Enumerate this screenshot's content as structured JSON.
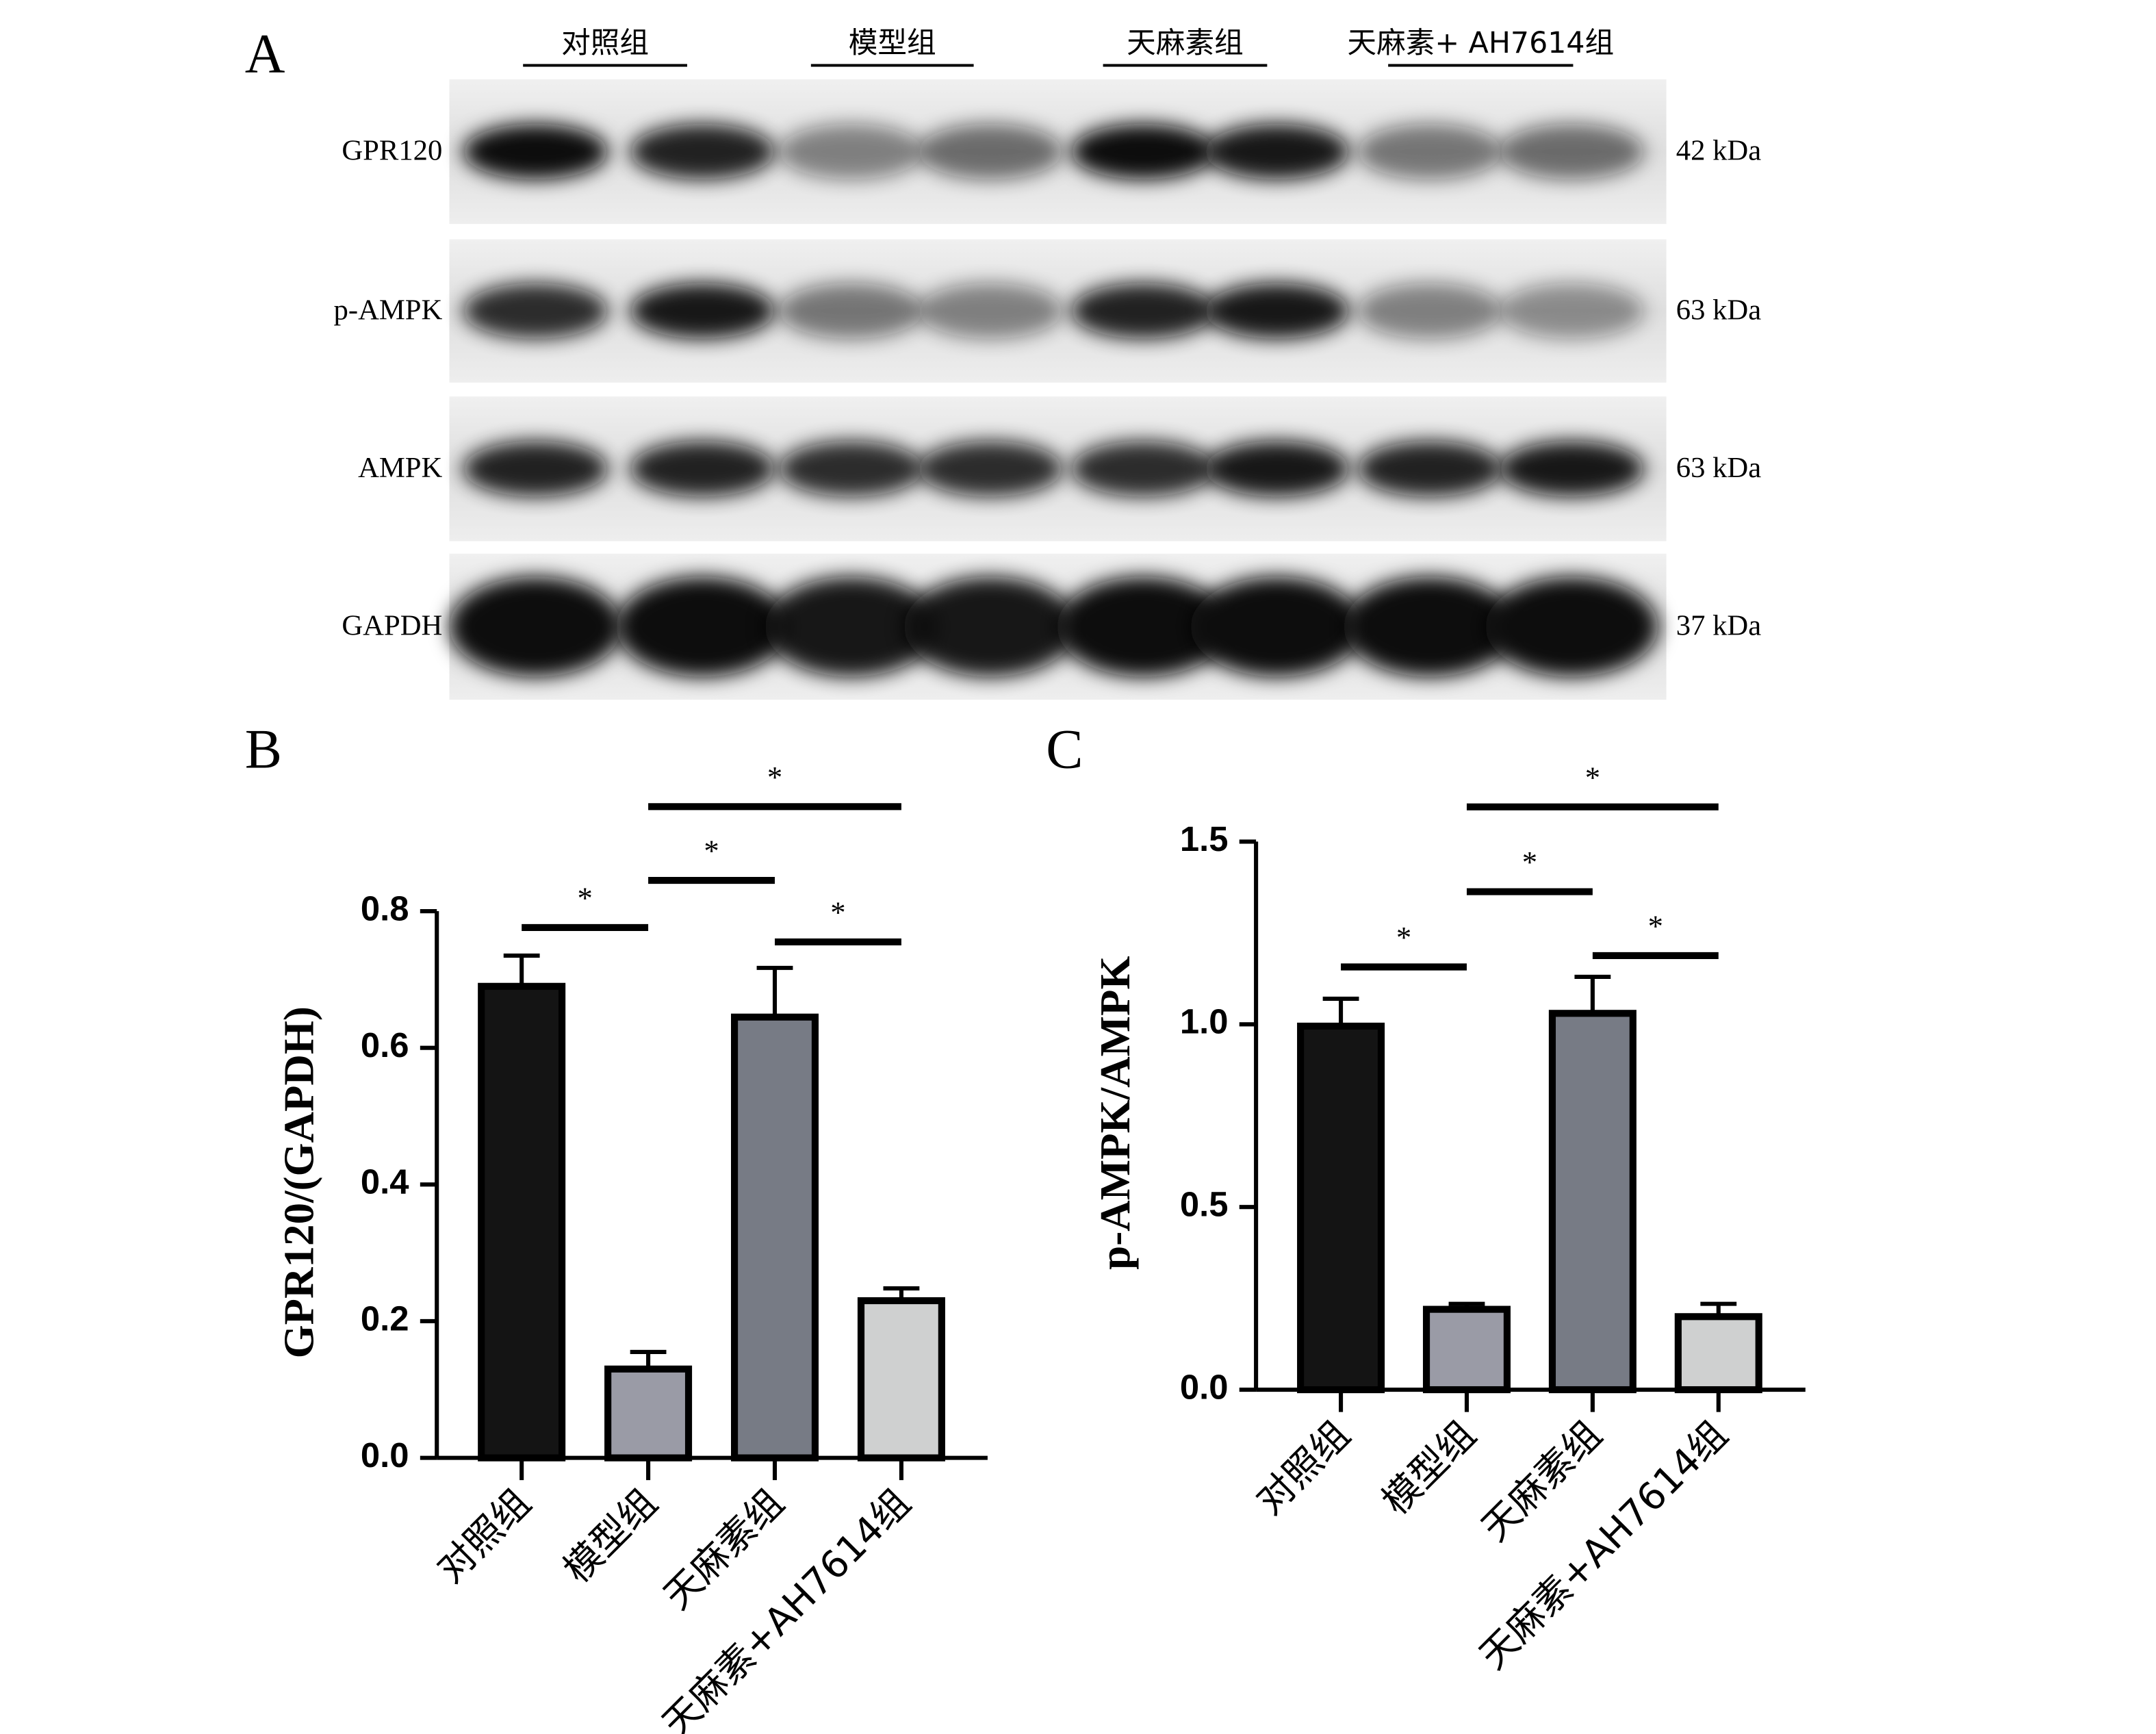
{
  "panel_a": {
    "label": "A",
    "groups": [
      "对照组",
      "模型组",
      "天麻素组",
      "天麻素+ AH7614组"
    ],
    "rows": [
      {
        "protein": "GPR120",
        "size": "42 kDa"
      },
      {
        "protein": "p-AMPK",
        "size": "63 kDa"
      },
      {
        "protein": "AMPK",
        "size": "63 kDa"
      },
      {
        "protein": "GAPDH",
        "size": "37 kDa"
      }
    ]
  },
  "chart_data": [
    {
      "type": "bar",
      "panel": "B",
      "y_label": "GPR120/(GAPDH)",
      "categories": [
        "对照组",
        "模型组",
        "天麻素组",
        "天麻素+AH7614组"
      ],
      "values": [
        0.69,
        0.13,
        0.645,
        0.23
      ],
      "errors": [
        0.045,
        0.025,
        0.072,
        0.018
      ],
      "colors": [
        "#141414",
        "#9a9ba6",
        "#777b85",
        "#cfd0d0"
      ],
      "ylim": [
        0,
        0.8
      ],
      "yticks": [
        {
          "value": 0,
          "label": "0.0"
        },
        0.2,
        0.4,
        0.6,
        0.8
      ],
      "significance": [
        {
          "from": 0,
          "to": 1,
          "y": 0.776,
          "label": "*"
        },
        {
          "from": 1,
          "to": 2,
          "y": 0.845,
          "label": "*"
        },
        {
          "from": 2,
          "to": 3,
          "y": 0.755,
          "label": "*"
        },
        {
          "from": 1,
          "to": 3,
          "y": 0.953,
          "label": "*"
        }
      ]
    },
    {
      "type": "bar",
      "panel": "C",
      "y_label": "p-AMPK/AMPK",
      "categories": [
        "对照组",
        "模型组",
        "天麻素组",
        "天麻素+AH7614组"
      ],
      "values": [
        0.995,
        0.22,
        1.03,
        0.2
      ],
      "errors": [
        0.075,
        0.015,
        0.1,
        0.035
      ],
      "colors": [
        "#141414",
        "#9a9ba6",
        "#777b85",
        "#cfd0d0"
      ],
      "ylim": [
        0,
        1.5
      ],
      "yticks": [
        {
          "value": 0,
          "label": "0.0"
        },
        0.5,
        {
          "value": 1,
          "label": "1.0"
        },
        1.5
      ],
      "significance": [
        {
          "from": 0,
          "to": 1,
          "y": 1.157,
          "label": "*"
        },
        {
          "from": 1,
          "to": 2,
          "y": 1.363,
          "label": "*"
        },
        {
          "from": 2,
          "to": 3,
          "y": 1.188,
          "label": "*"
        },
        {
          "from": 1,
          "to": 3,
          "y": 1.595,
          "label": "*"
        }
      ]
    }
  ]
}
